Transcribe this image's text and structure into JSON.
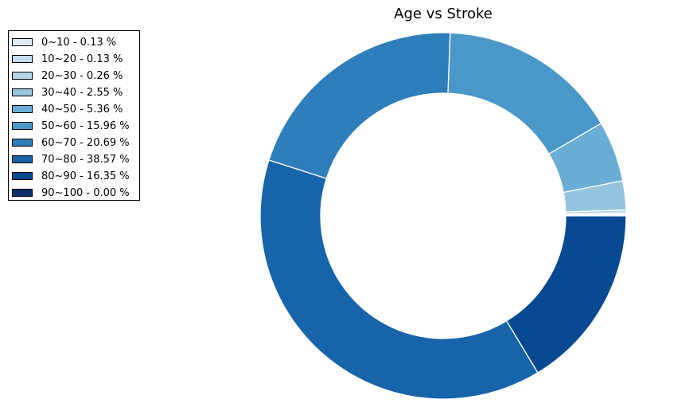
{
  "chart_data": {
    "type": "pie",
    "title": "Age vs Stroke",
    "donut": true,
    "legend_position": "top-left",
    "categories": [
      "0~10",
      "10~20",
      "20~30",
      "30~40",
      "40~50",
      "50~60",
      "60~70",
      "70~80",
      "80~90",
      "90~100"
    ],
    "values": [
      0.13,
      0.13,
      0.26,
      2.55,
      5.36,
      15.96,
      20.69,
      38.57,
      16.35,
      0.0
    ],
    "legend_labels": [
      "0~10 - 0.13 %",
      "10~20 - 0.13 %",
      "20~30 - 0.26 %",
      "30~40 - 2.55 %",
      "40~50 - 5.36 %",
      "50~60 - 15.96 %",
      "60~70 - 20.69 %",
      "70~80 - 38.57 %",
      "80~90 - 16.35 %",
      "90~100 - 0.00 %"
    ],
    "colors": [
      "#deebf7",
      "#c6dbef",
      "#b6d4e9",
      "#94c4df",
      "#6aaed6",
      "#4a98c9",
      "#2e7ebc",
      "#1764ab",
      "#084a92",
      "#08306b"
    ]
  }
}
